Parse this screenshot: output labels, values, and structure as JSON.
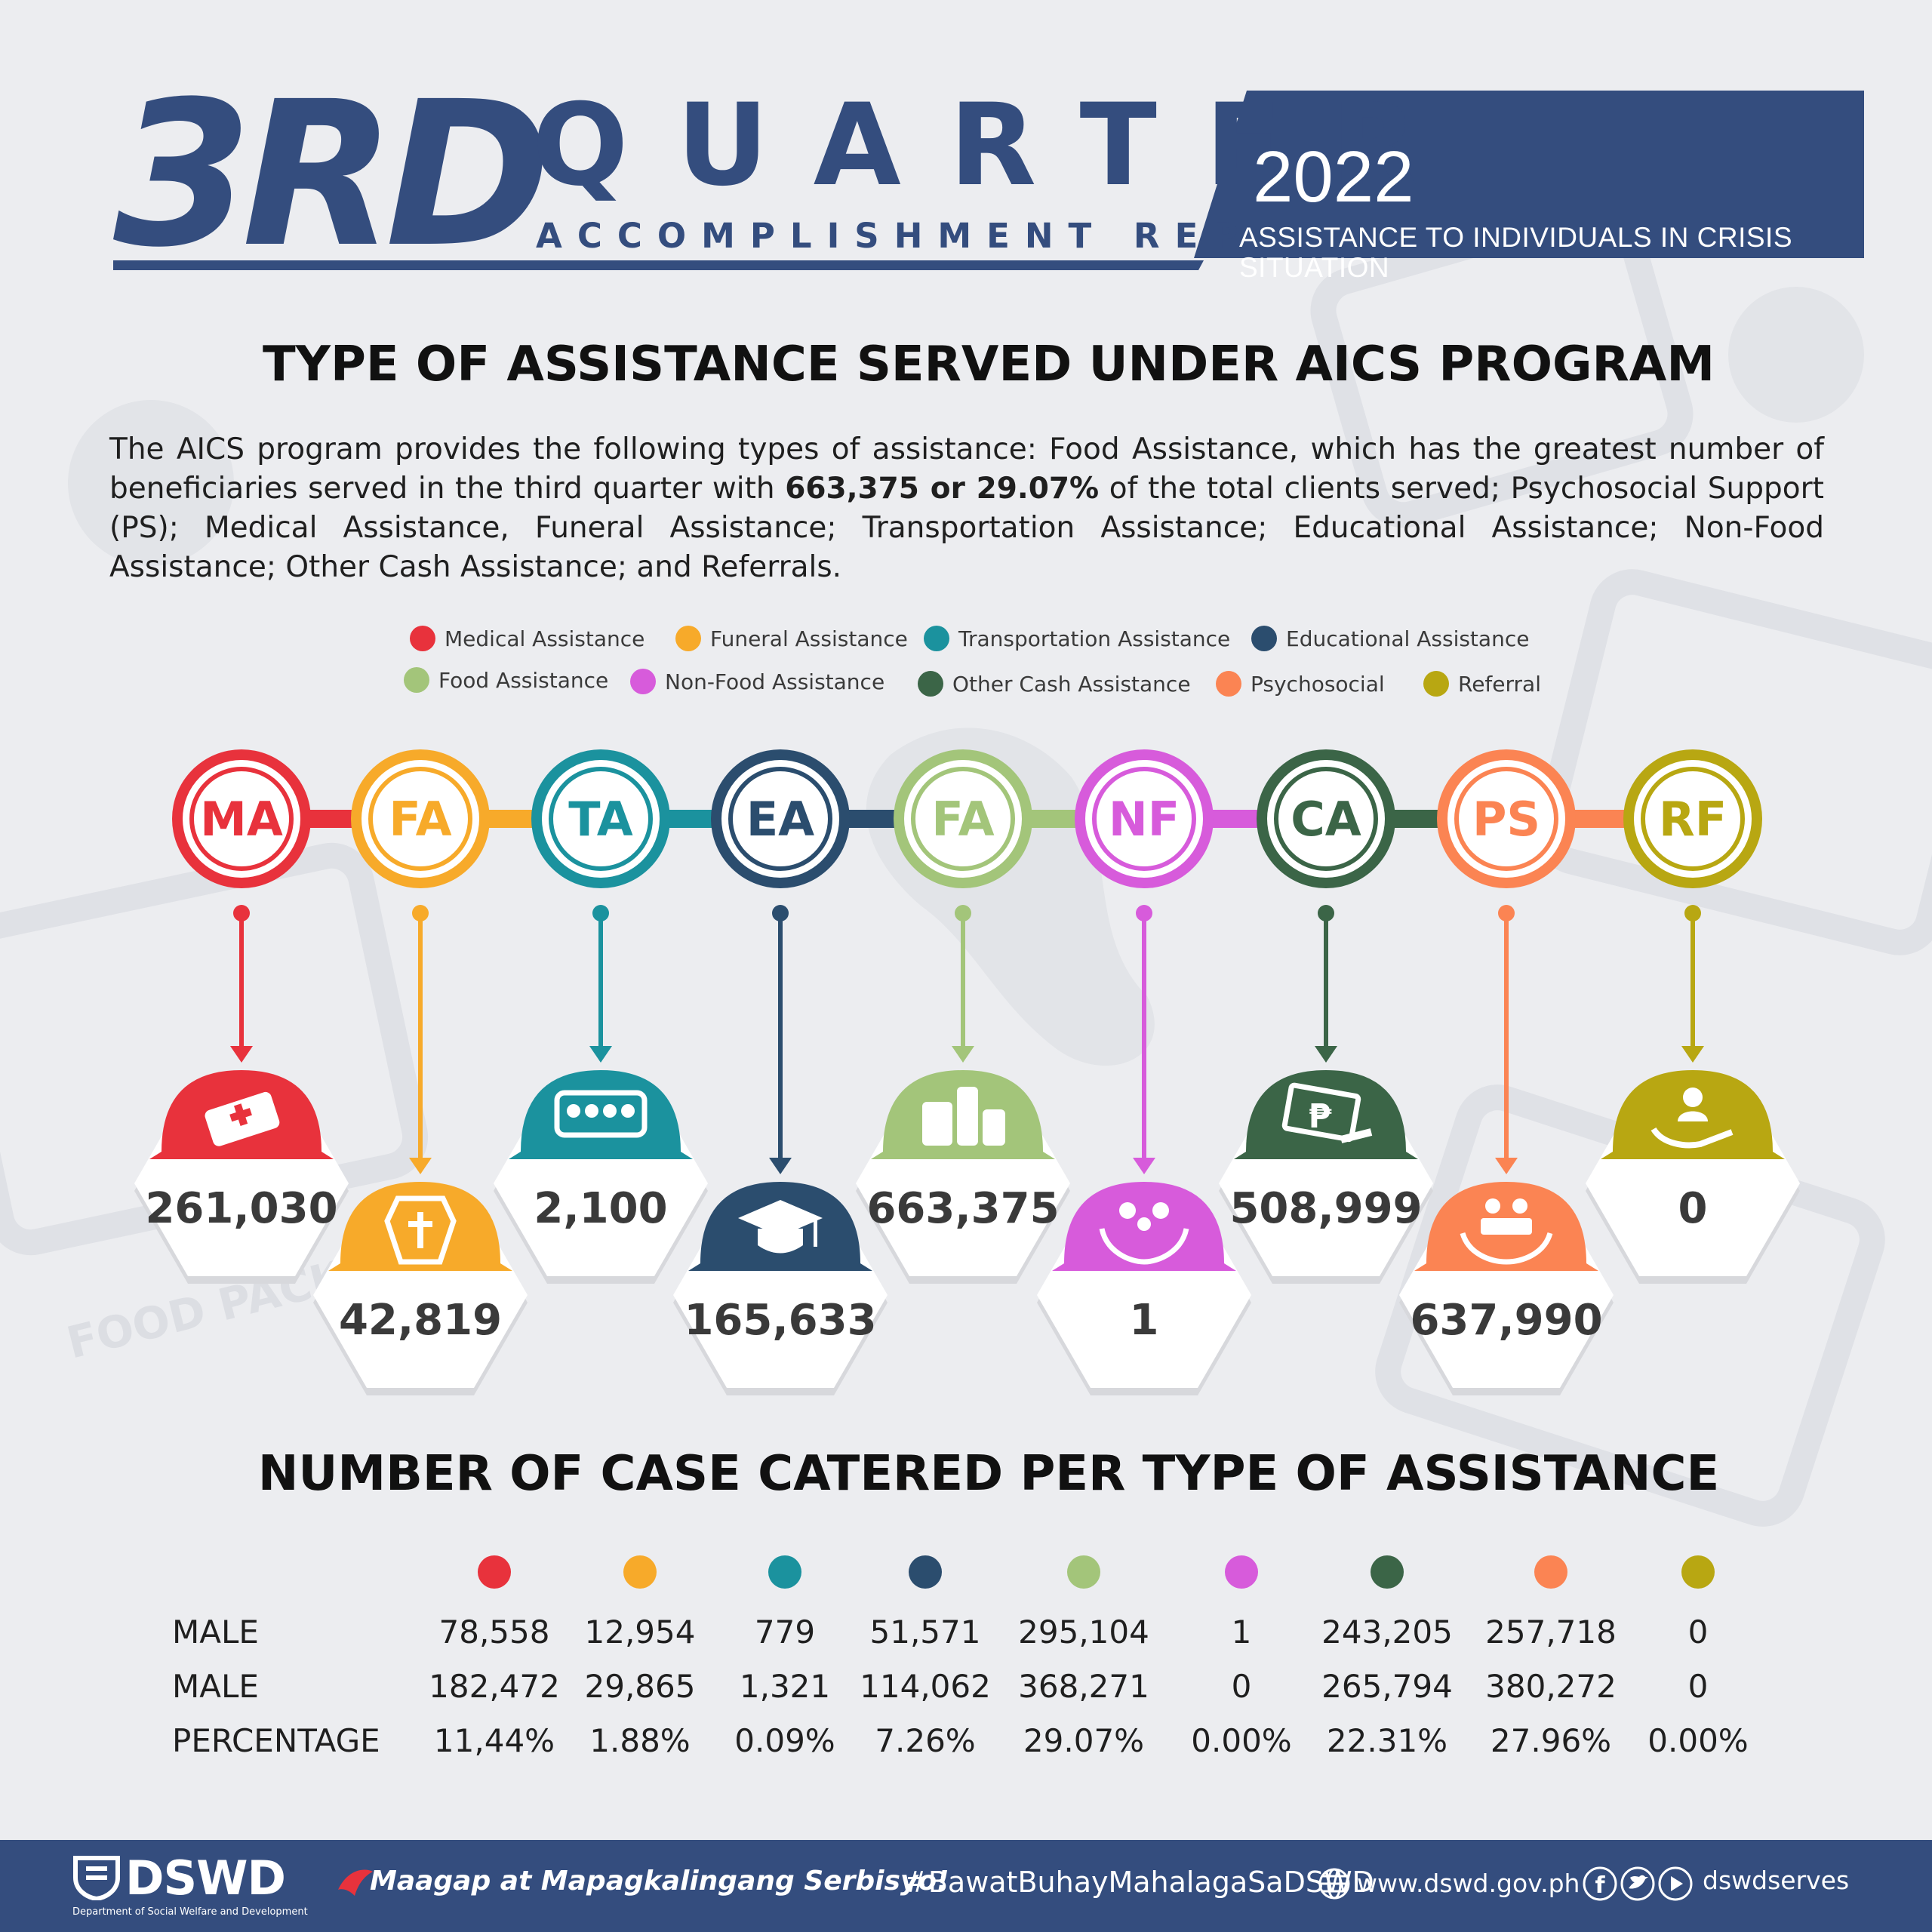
{
  "header": {
    "ordinal": "3RD",
    "quarter": "QUARTER",
    "subtitle": "ACCOMPLISHMENT REPORT",
    "year": "2022",
    "program": "ASSISTANCE TO INDIVIDUALS IN CRISIS SITUATION"
  },
  "section1": {
    "title": "TYPE OF ASSISTANCE SERVED UNDER AICS PROGRAM",
    "intro_before": "The AICS program provides the following types of assistance: Food Assistance, which has the greatest number of beneficiaries served in the third quarter with ",
    "intro_bold": "663,375 or 29.07%",
    "intro_after": " of the total clients served; Psychosocial Support (PS); Medical Assistance, Funeral Assistance; Transportation Assistance; Educational Assistance; Non-Food Assistance; Other Cash Assistance; and Referrals."
  },
  "legend": [
    {
      "label": "Medical Assistance",
      "color": "#e8323c"
    },
    {
      "label": "Funeral Assistance",
      "color": "#f7aa2a"
    },
    {
      "label": "Transportation Assistance",
      "color": "#1b929e"
    },
    {
      "label": "Educational Assistance",
      "color": "#2b4d6e"
    },
    {
      "label": "Food Assistance",
      "color": "#a3c57a"
    },
    {
      "label": "Non-Food Assistance",
      "color": "#d75bdb"
    },
    {
      "label": "Other Cash Assistance",
      "color": "#3b6547"
    },
    {
      "label": "Psychosocial",
      "color": "#fb8453"
    },
    {
      "label": "Referral",
      "color": "#b8a712"
    }
  ],
  "chart_data": {
    "type": "table",
    "categories": [
      "MA",
      "FA",
      "TA",
      "EA",
      "FA",
      "NF",
      "CA",
      "PS",
      "RF"
    ],
    "colors": [
      "#e8323c",
      "#f7aa2a",
      "#1b929e",
      "#2b4d6e",
      "#a3c57a",
      "#d75bdb",
      "#3b6547",
      "#fb8453",
      "#b8a712"
    ],
    "icons": [
      "medical-kit-icon",
      "coffin-cross-icon",
      "bus-passengers-icon",
      "graduation-cap-icon",
      "groceries-icon",
      "family-hands-icon",
      "cash-peso-icon",
      "counseling-hands-icon",
      "hand-person-icon"
    ],
    "totals": [
      "261,030",
      "42,819",
      "2,100",
      "165,633",
      "663,375",
      "1",
      "508,999",
      "637,990",
      "0"
    ],
    "table_title": "NUMBER OF CASE CATERED PER TYPE OF ASSISTANCE",
    "rows": [
      {
        "label": "MALE",
        "values": [
          "78,558",
          "12,954",
          "779",
          "51,571",
          "295,104",
          "1",
          "243,205",
          "257,718",
          "0"
        ]
      },
      {
        "label": "MALE",
        "values": [
          "182,472",
          "29,865",
          "1,321",
          "114,062",
          "368,271",
          "0",
          "265,794",
          "380,272",
          "0"
        ]
      },
      {
        "label": "PERCENTAGE",
        "values": [
          "11,44%",
          "1.88%",
          "0.09%",
          "7.26%",
          "29.07%",
          "0.00%",
          "22.31%",
          "27.96%",
          "0.00%"
        ]
      }
    ]
  },
  "footer": {
    "logo": "DSWD",
    "logo_sub": "Department of Social Welfare and Development",
    "slogan": "Maagap at Mapagkalingang Serbisyo!",
    "hashtag": "#BawatBuhayMahalagaSaDSWD",
    "website": "www.dswd.gov.ph",
    "social": "dswdserves"
  }
}
